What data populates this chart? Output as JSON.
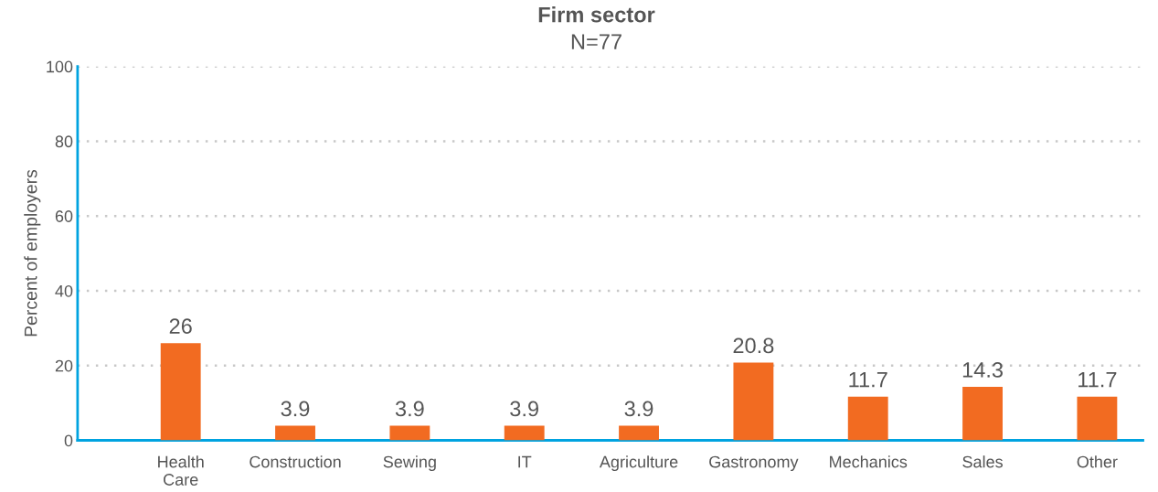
{
  "chart_data": {
    "type": "bar",
    "title": "Firm sector",
    "subtitle": "N=77",
    "ylabel": "Percent of employers",
    "categories": [
      "Health\nCare",
      "Construction",
      "Sewing",
      "IT",
      "Agriculture",
      "Gastronomy",
      "Mechanics",
      "Sales",
      "Other"
    ],
    "values": [
      26,
      3.9,
      3.9,
      3.9,
      3.9,
      20.8,
      11.7,
      14.3,
      11.7
    ],
    "color": "#f26b21",
    "ylim": [
      0,
      100
    ],
    "yticks": [
      0,
      20,
      40,
      60,
      80,
      100
    ],
    "grid": "y",
    "data_labels": true
  }
}
